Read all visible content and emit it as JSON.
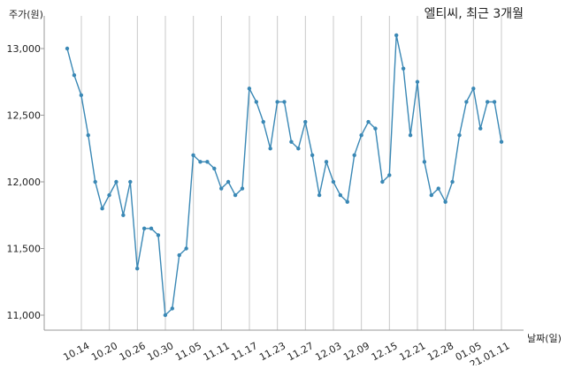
{
  "chart_data": {
    "type": "line",
    "title": "엘티씨, 최근 3개월",
    "ylabel": "주가(원)",
    "xlabel": "날짜(일)",
    "ylim": [
      10950,
      13200
    ],
    "yticks": [
      11000,
      11500,
      12000,
      12500,
      13000
    ],
    "ytick_labels": [
      "11,000",
      "11,500",
      "12,000",
      "12,500",
      "13,000"
    ],
    "xtick_labels": [
      "10.14",
      "10.20",
      "10.26",
      "10.30",
      "11.05",
      "11.11",
      "11.17",
      "11.23",
      "11.27",
      "12.03",
      "12.09",
      "12.15",
      "12.21",
      "12.28",
      "01.05",
      "21.01.11"
    ],
    "grid": "vertical",
    "line_color": "#3a88b5",
    "series": [
      {
        "values": [
          13000,
          12800,
          12650,
          12350,
          12000,
          11800,
          11900,
          12000,
          11750,
          12000,
          11350,
          11650,
          11650,
          11600,
          11000,
          11050,
          11450,
          11500,
          12200,
          12150,
          12150,
          12100,
          11950,
          12000,
          11900,
          11950,
          12700,
          12600,
          12450,
          12250,
          12600,
          12600,
          12300,
          12250,
          12450,
          12200,
          11900,
          12150,
          12000,
          11900,
          11850,
          12200,
          12350,
          12450,
          12400,
          12000,
          12050,
          13100,
          12850,
          12350,
          12750,
          12150,
          11900,
          11950,
          11850,
          12000,
          12350,
          12600,
          12700,
          12400,
          12600,
          12600,
          12300
        ]
      }
    ]
  }
}
